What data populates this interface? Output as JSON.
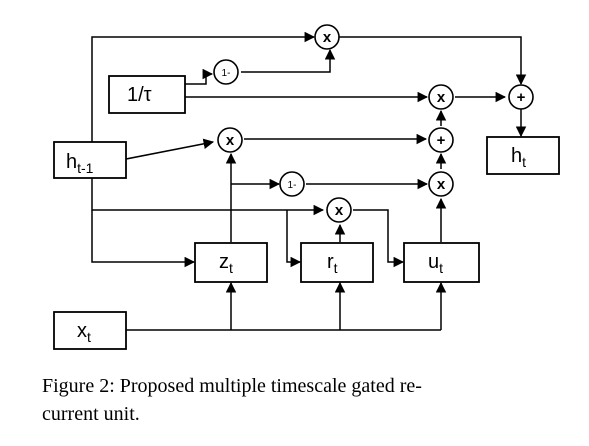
{
  "diagram": {
    "boxes": {
      "h_prev": {
        "main": "h",
        "sub": "t-1"
      },
      "inv_tau": {
        "main": "1/τ"
      },
      "h_t": {
        "main": "h",
        "sub": "t"
      },
      "z_t": {
        "main": "z",
        "sub": "t"
      },
      "r_t": {
        "main": "r",
        "sub": "t"
      },
      "u_t": {
        "main": "u",
        "sub": "t"
      },
      "x_t": {
        "main": "x",
        "sub": "t"
      }
    },
    "ops": {
      "times": "x",
      "plus": "+",
      "one_minus": "1-"
    }
  },
  "caption": {
    "line1": "Figure 2:  Proposed multiple timescale gated re-",
    "line2": "current unit."
  }
}
